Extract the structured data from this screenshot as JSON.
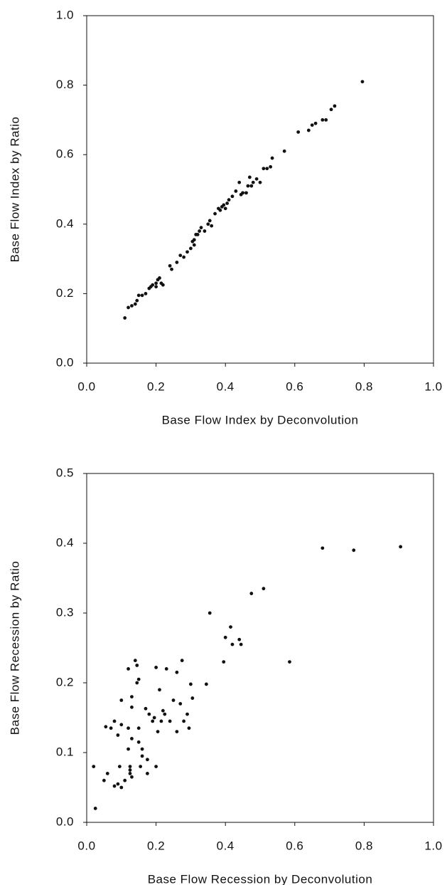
{
  "chart_data": [
    {
      "type": "scatter",
      "color": "#111111",
      "xlabel": "Base Flow Index by Deconvolution",
      "ylabel": "Base Flow Index by Ratio",
      "xlim": [
        0,
        1
      ],
      "ylim": [
        0,
        1
      ],
      "xticks": [
        {
          "value": 0,
          "label": "0.0"
        },
        {
          "value": 0.2,
          "label": "0.2"
        },
        {
          "value": 0.4,
          "label": "0.4"
        },
        {
          "value": 0.6,
          "label": "0.6"
        },
        {
          "value": 0.8,
          "label": "0.8"
        },
        {
          "value": 1,
          "label": "1.0"
        }
      ],
      "yticks": [
        {
          "value": 0,
          "label": "0.0"
        },
        {
          "value": 0.2,
          "label": "0.2"
        },
        {
          "value": 0.4,
          "label": "0.4"
        },
        {
          "value": 0.6,
          "label": "0.6"
        },
        {
          "value": 0.8,
          "label": "0.8"
        },
        {
          "value": 1,
          "label": "1.0"
        }
      ],
      "x": [
        0.11,
        0.12,
        0.13,
        0.14,
        0.145,
        0.15,
        0.16,
        0.17,
        0.18,
        0.185,
        0.19,
        0.2,
        0.2,
        0.205,
        0.21,
        0.215,
        0.22,
        0.24,
        0.245,
        0.26,
        0.27,
        0.28,
        0.29,
        0.3,
        0.305,
        0.31,
        0.31,
        0.315,
        0.32,
        0.325,
        0.33,
        0.34,
        0.35,
        0.355,
        0.36,
        0.37,
        0.38,
        0.385,
        0.39,
        0.395,
        0.4,
        0.405,
        0.41,
        0.42,
        0.43,
        0.44,
        0.445,
        0.45,
        0.46,
        0.465,
        0.47,
        0.475,
        0.48,
        0.49,
        0.5,
        0.51,
        0.52,
        0.53,
        0.535,
        0.57,
        0.61,
        0.64,
        0.65,
        0.66,
        0.68,
        0.69,
        0.705,
        0.715,
        0.795
      ],
      "values": [
        0.13,
        0.16,
        0.165,
        0.17,
        0.18,
        0.195,
        0.195,
        0.2,
        0.215,
        0.22,
        0.225,
        0.23,
        0.22,
        0.24,
        0.245,
        0.23,
        0.225,
        0.28,
        0.27,
        0.29,
        0.31,
        0.305,
        0.32,
        0.33,
        0.35,
        0.355,
        0.34,
        0.37,
        0.37,
        0.38,
        0.39,
        0.38,
        0.4,
        0.41,
        0.395,
        0.43,
        0.445,
        0.44,
        0.45,
        0.455,
        0.445,
        0.46,
        0.47,
        0.48,
        0.495,
        0.52,
        0.485,
        0.49,
        0.49,
        0.51,
        0.535,
        0.51,
        0.52,
        0.53,
        0.52,
        0.56,
        0.56,
        0.565,
        0.59,
        0.61,
        0.665,
        0.67,
        0.685,
        0.69,
        0.7,
        0.7,
        0.73,
        0.74,
        0.81
      ]
    },
    {
      "type": "scatter",
      "color": "#111111",
      "xlabel": "Base Flow Recession by Deconvolution",
      "ylabel": "Base Flow Recession by Ratio",
      "xlim": [
        0,
        1
      ],
      "ylim": [
        0,
        0.5
      ],
      "xticks": [
        {
          "value": 0,
          "label": "0.0"
        },
        {
          "value": 0.2,
          "label": "0.2"
        },
        {
          "value": 0.4,
          "label": "0.4"
        },
        {
          "value": 0.6,
          "label": "0.6"
        },
        {
          "value": 0.8,
          "label": "0.8"
        },
        {
          "value": 1,
          "label": "1.0"
        }
      ],
      "yticks": [
        {
          "value": 0,
          "label": "0.0"
        },
        {
          "value": 0.1,
          "label": "0.1"
        },
        {
          "value": 0.2,
          "label": "0.2"
        },
        {
          "value": 0.3,
          "label": "0.3"
        },
        {
          "value": 0.4,
          "label": "0.4"
        },
        {
          "value": 0.5,
          "label": "0.5"
        }
      ],
      "x": [
        0.02,
        0.025,
        0.05,
        0.06,
        0.055,
        0.07,
        0.08,
        0.08,
        0.09,
        0.09,
        0.095,
        0.1,
        0.1,
        0.1,
        0.11,
        0.12,
        0.12,
        0.12,
        0.125,
        0.125,
        0.125,
        0.13,
        0.13,
        0.13,
        0.13,
        0.14,
        0.145,
        0.145,
        0.15,
        0.15,
        0.15,
        0.155,
        0.16,
        0.16,
        0.17,
        0.175,
        0.175,
        0.18,
        0.19,
        0.195,
        0.2,
        0.2,
        0.205,
        0.21,
        0.215,
        0.22,
        0.225,
        0.23,
        0.24,
        0.25,
        0.26,
        0.26,
        0.27,
        0.275,
        0.28,
        0.29,
        0.295,
        0.3,
        0.305,
        0.345,
        0.355,
        0.395,
        0.4,
        0.415,
        0.42,
        0.44,
        0.445,
        0.475,
        0.51,
        0.585,
        0.68,
        0.77,
        0.905
      ],
      "values": [
        0.08,
        0.02,
        0.06,
        0.07,
        0.137,
        0.135,
        0.145,
        0.052,
        0.055,
        0.125,
        0.08,
        0.05,
        0.14,
        0.175,
        0.06,
        0.22,
        0.135,
        0.105,
        0.08,
        0.075,
        0.07,
        0.18,
        0.165,
        0.12,
        0.065,
        0.232,
        0.225,
        0.2,
        0.205,
        0.135,
        0.115,
        0.08,
        0.105,
        0.095,
        0.163,
        0.07,
        0.09,
        0.155,
        0.145,
        0.15,
        0.222,
        0.08,
        0.13,
        0.19,
        0.145,
        0.16,
        0.155,
        0.22,
        0.145,
        0.175,
        0.215,
        0.13,
        0.17,
        0.232,
        0.145,
        0.155,
        0.135,
        0.198,
        0.178,
        0.198,
        0.3,
        0.23,
        0.265,
        0.28,
        0.255,
        0.262,
        0.255,
        0.328,
        0.335,
        0.23,
        0.393,
        0.39,
        0.395
      ]
    }
  ]
}
